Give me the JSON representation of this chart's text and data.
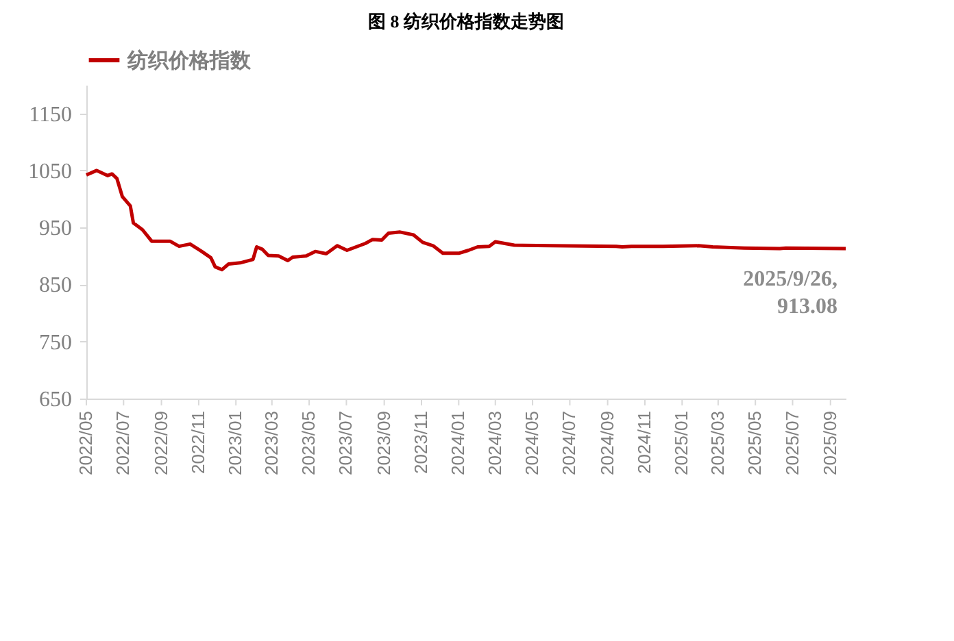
{
  "chart_data": {
    "type": "line",
    "title": "图 8   纺织价格指数走势图",
    "series": [
      {
        "name": "纺织价格指数",
        "color": "#c00000",
        "x": [
          "2022-05-01",
          "2022-05-18",
          "2022-06-05",
          "2022-06-12",
          "2022-06-20",
          "2022-06-29",
          "2022-07-12",
          "2022-07-17",
          "2022-08-01",
          "2022-08-16",
          "2022-09-15",
          "2022-09-30",
          "2022-10-18",
          "2022-11-06",
          "2022-11-21",
          "2022-11-28",
          "2022-12-09",
          "2022-12-20",
          "2023-01-08",
          "2023-01-29",
          "2023-02-04",
          "2023-02-13",
          "2023-02-23",
          "2023-03-12",
          "2023-03-27",
          "2023-04-04",
          "2023-04-26",
          "2023-05-11",
          "2023-05-29",
          "2023-06-16",
          "2023-07-02",
          "2023-08-01",
          "2023-08-13",
          "2023-08-28",
          "2023-09-08",
          "2023-09-27",
          "2023-10-19",
          "2023-11-03",
          "2023-11-20",
          "2023-12-06",
          "2024-01-02",
          "2024-01-17",
          "2024-02-01",
          "2024-02-20",
          "2024-03-01",
          "2024-04-01",
          "2024-06-01",
          "2024-09-15",
          "2024-09-25",
          "2024-10-10",
          "2024-12-01",
          "2025-01-28",
          "2025-02-20",
          "2025-04-13",
          "2025-06-10",
          "2025-06-20",
          "2025-09-26"
        ],
        "values": [
          1042,
          1050,
          1041,
          1044,
          1036,
          1004,
          988,
          958,
          946,
          926,
          926,
          917,
          921,
          908,
          897,
          881,
          876,
          886,
          888,
          894,
          916,
          912,
          901,
          900,
          892,
          898,
          900,
          908,
          904,
          918,
          910,
          922,
          929,
          928,
          940,
          942,
          937,
          924,
          918,
          905,
          905,
          910,
          916,
          917,
          925,
          919,
          918,
          917,
          916,
          917,
          917,
          918,
          916,
          914,
          913,
          914,
          913.08
        ]
      }
    ],
    "xlim": [
      "2022-05-01",
      "2025-09-26"
    ],
    "xticks": [
      {
        "value": "2022-05-01",
        "label": "2022/05"
      },
      {
        "value": "2022-07-01",
        "label": "2022/07"
      },
      {
        "value": "2022-09-01",
        "label": "2022/09"
      },
      {
        "value": "2022-11-01",
        "label": "2022/11"
      },
      {
        "value": "2023-01-01",
        "label": "2023/01"
      },
      {
        "value": "2023-03-01",
        "label": "2023/03"
      },
      {
        "value": "2023-05-01",
        "label": "2023/05"
      },
      {
        "value": "2023-07-01",
        "label": "2023/07"
      },
      {
        "value": "2023-09-01",
        "label": "2023/09"
      },
      {
        "value": "2023-11-01",
        "label": "2023/11"
      },
      {
        "value": "2024-01-01",
        "label": "2024/01"
      },
      {
        "value": "2024-03-01",
        "label": "2024/03"
      },
      {
        "value": "2024-05-01",
        "label": "2024/05"
      },
      {
        "value": "2024-07-01",
        "label": "2024/07"
      },
      {
        "value": "2024-09-01",
        "label": "2024/09"
      },
      {
        "value": "2024-11-01",
        "label": "2024/11"
      },
      {
        "value": "2025-01-01",
        "label": "2025/01"
      },
      {
        "value": "2025-03-01",
        "label": "2025/03"
      },
      {
        "value": "2025-05-01",
        "label": "2025/05"
      },
      {
        "value": "2025-07-01",
        "label": "2025/07"
      },
      {
        "value": "2025-09-01",
        "label": "2025/09"
      }
    ],
    "ylim": [
      650,
      1200
    ],
    "yticks": [
      650,
      750,
      850,
      950,
      1050,
      1150
    ],
    "annotations": [
      {
        "text": "2025/9/26,\n913.08",
        "x": "2025-09-26",
        "y": 913.08
      }
    ],
    "legend": "top",
    "grid": false,
    "marker": "none",
    "line_style": "solid"
  }
}
